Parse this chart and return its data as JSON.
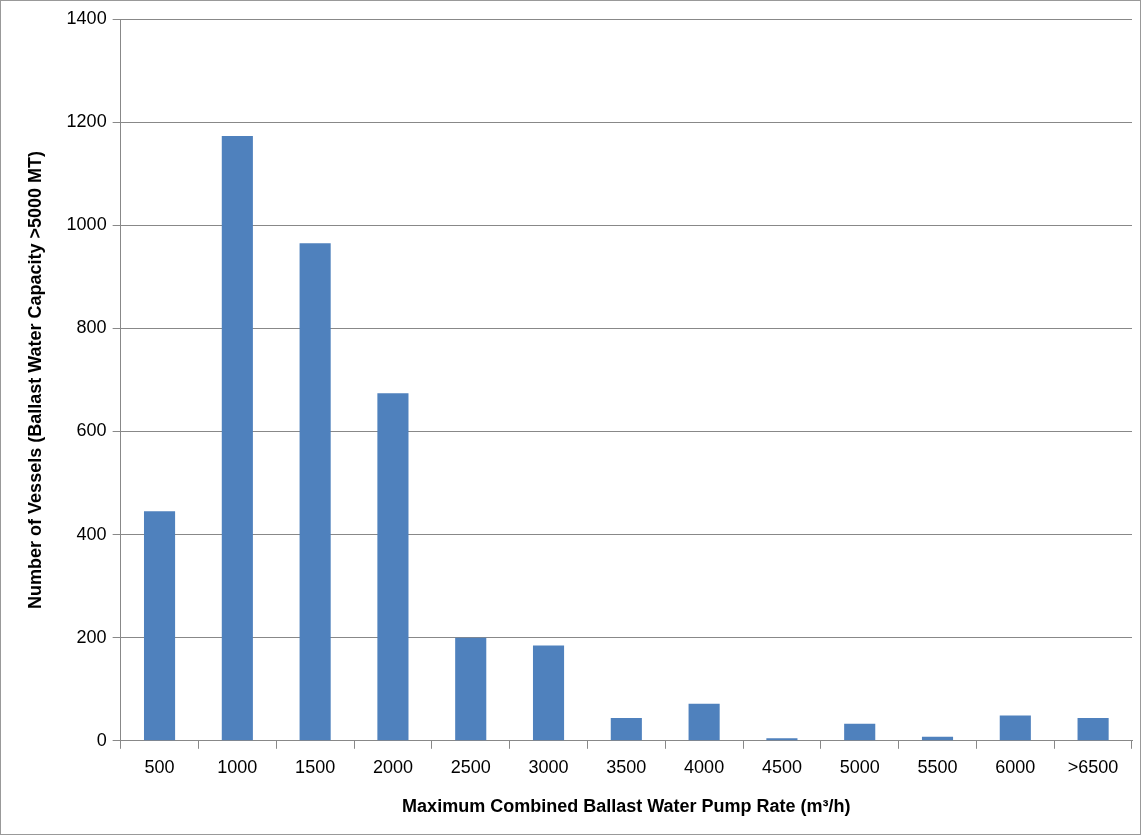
{
  "chart_data": {
    "type": "bar",
    "xlabel": "Maximum Combined Ballast Water Pump Rate (m³/h)",
    "ylabel": "Number of Vessels (Ballast Water Capacity >5000 MT)",
    "categories": [
      "500",
      "1000",
      "1500",
      "2000",
      "2500",
      "3000",
      "3500",
      "4000",
      "4500",
      "5000",
      "5500",
      "6000",
      ">6500"
    ],
    "values": [
      445,
      1173,
      965,
      674,
      200,
      185,
      44,
      72,
      5,
      33,
      8,
      49,
      44
    ],
    "color": "#4f81bd",
    "ylim": [
      0,
      1400
    ],
    "yticks": [
      0,
      200,
      400,
      600,
      800,
      1000,
      1200,
      1400
    ],
    "grid": "y",
    "legend": false
  }
}
